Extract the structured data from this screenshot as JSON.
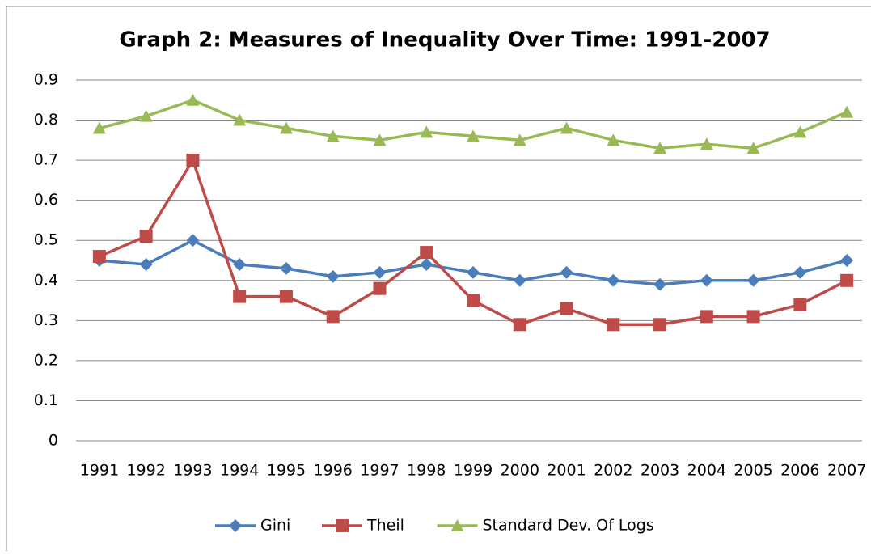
{
  "chart_data": {
    "type": "line",
    "title": "Graph 2: Measures of Inequality Over Time: 1991-2007",
    "categories": [
      "1991",
      "1992",
      "1993",
      "1994",
      "1995",
      "1996",
      "1997",
      "1998",
      "1999",
      "2000",
      "2001",
      "2002",
      "2003",
      "2004",
      "2005",
      "2006",
      "2007"
    ],
    "series": [
      {
        "name": "Gini",
        "color": "#4a7ebb",
        "marker": "diamond",
        "values": [
          0.45,
          0.44,
          0.5,
          0.44,
          0.43,
          0.41,
          0.42,
          0.44,
          0.42,
          0.4,
          0.42,
          0.4,
          0.39,
          0.4,
          0.4,
          0.42,
          0.45
        ]
      },
      {
        "name": "Theil",
        "color": "#be4b48",
        "marker": "square",
        "values": [
          0.46,
          0.51,
          0.7,
          0.36,
          0.36,
          0.31,
          0.38,
          0.47,
          0.35,
          0.29,
          0.33,
          0.29,
          0.29,
          0.31,
          0.31,
          0.34,
          0.4
        ]
      },
      {
        "name": "Standard Dev. Of Logs",
        "color": "#98b954",
        "marker": "triangle",
        "values": [
          0.78,
          0.81,
          0.85,
          0.8,
          0.78,
          0.76,
          0.75,
          0.77,
          0.76,
          0.75,
          0.78,
          0.75,
          0.73,
          0.74,
          0.73,
          0.77,
          0.82
        ]
      }
    ],
    "ylim": [
      0,
      0.9
    ],
    "yticks": [
      0,
      0.1,
      0.2,
      0.3,
      0.4,
      0.5,
      0.6,
      0.7,
      0.8,
      0.9
    ],
    "grid": true,
    "legend": "bottom"
  }
}
